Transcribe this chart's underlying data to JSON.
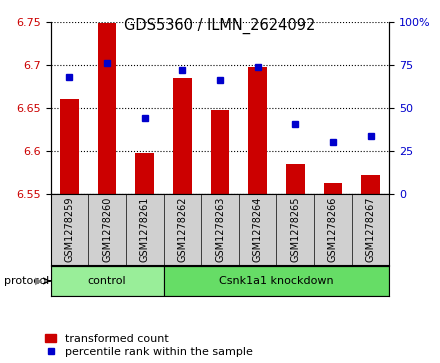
{
  "title": "GDS5360 / ILMN_2624092",
  "samples": [
    "GSM1278259",
    "GSM1278260",
    "GSM1278261",
    "GSM1278262",
    "GSM1278263",
    "GSM1278264",
    "GSM1278265",
    "GSM1278266",
    "GSM1278267"
  ],
  "bar_values": [
    6.661,
    6.749,
    6.598,
    6.685,
    6.648,
    6.697,
    6.585,
    6.563,
    6.572
  ],
  "percentile_values": [
    68,
    76,
    44,
    72,
    66,
    74,
    41,
    30,
    34
  ],
  "bar_color": "#cc0000",
  "dot_color": "#0000cc",
  "ylim_left": [
    6.55,
    6.75
  ],
  "ylim_right": [
    0,
    100
  ],
  "yticks_left": [
    6.55,
    6.6,
    6.65,
    6.7,
    6.75
  ],
  "yticks_right": [
    0,
    25,
    50,
    75,
    100
  ],
  "groups": [
    {
      "label": "control",
      "indices": [
        0,
        1,
        2
      ],
      "color": "#99ee99"
    },
    {
      "label": "Csnk1a1 knockdown",
      "indices": [
        3,
        4,
        5,
        6,
        7,
        8
      ],
      "color": "#66dd66"
    }
  ],
  "protocol_label": "protocol",
  "legend_bar_label": "transformed count",
  "legend_dot_label": "percentile rank within the sample",
  "bar_width": 0.5,
  "sample_bg_color": "#d0d0d0",
  "proto_border_color": "#000000"
}
